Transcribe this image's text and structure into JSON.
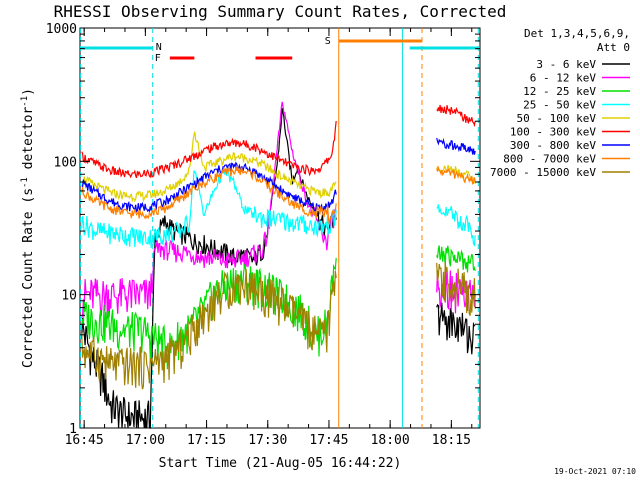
{
  "chart_data": {
    "type": "line",
    "title": "RHESSI Observing Summary Count Rates, Corrected",
    "xlabel": "Start Time (21-Aug-05 16:44:22)",
    "ylabel": "Corrected Count Rate (s⁻¹ detector⁻¹)",
    "ylabel_base": "Corrected Count Rate (s",
    "ylabel_sup1": "-1",
    "ylabel_mid": " detector",
    "ylabel_sup2": "-1",
    "ylabel_end": ")",
    "y_scale": "log",
    "xlim_min": [
      16.733,
      18.367
    ],
    "ylim": [
      1,
      1000
    ],
    "x_ticks": [
      {
        "min": 16.75,
        "label": "16:45"
      },
      {
        "min": 17.0,
        "label": "17:00"
      },
      {
        "min": 17.25,
        "label": "17:15"
      },
      {
        "min": 17.5,
        "label": "17:30"
      },
      {
        "min": 17.75,
        "label": "17:45"
      },
      {
        "min": 18.0,
        "label": "18:00"
      },
      {
        "min": 18.25,
        "label": "18:15"
      }
    ],
    "y_ticks": [
      {
        "v": 1,
        "label": "1"
      },
      {
        "v": 10,
        "label": "10"
      },
      {
        "v": 100,
        "label": "100"
      },
      {
        "v": 1000,
        "label": "1000"
      }
    ],
    "legend": {
      "header1": "Det 1,3,4,5,6,9,",
      "header2": "Att 0",
      "position": "right"
    },
    "timestamp": "19-Oct-2021 07:10",
    "markers": {
      "N": {
        "label": "N",
        "color": "#00e0e0"
      },
      "F": {
        "label": "F",
        "color": "#ff0000"
      },
      "S": {
        "label": "S",
        "color": "#ff8000"
      }
    },
    "bars": [
      {
        "code": "night",
        "color": "#00e0e0",
        "start": 16.735,
        "end": 17.03
      },
      {
        "code": "night",
        "color": "#00e0e0",
        "start": 18.08,
        "end": 18.36
      },
      {
        "code": "flare",
        "color": "#ff0000",
        "start": 17.1,
        "end": 17.2
      },
      {
        "code": "flare",
        "color": "#ff0000",
        "start": 17.45,
        "end": 17.6
      },
      {
        "code": "saa",
        "color": "#ff8000",
        "start": 17.79,
        "end": 18.13
      }
    ],
    "vlines": [
      {
        "x": 16.735,
        "color": "#00e0e0",
        "style": "dash"
      },
      {
        "x": 17.03,
        "color": "#00e0e0",
        "style": "dash"
      },
      {
        "x": 17.79,
        "color": "#ff8000",
        "style": "solid"
      },
      {
        "x": 18.05,
        "color": "#00e0e0",
        "style": "solid"
      },
      {
        "x": 18.13,
        "color": "#ff8000",
        "style": "dash"
      },
      {
        "x": 18.36,
        "color": "#00e0e0",
        "style": "dash"
      }
    ],
    "series": [
      {
        "name": "3 - 6 keV",
        "color": "#000000",
        "x1": [
          16.74,
          16.78,
          16.82,
          16.86,
          16.9,
          16.94,
          16.98,
          17.02,
          17.04,
          17.08,
          17.12,
          17.16,
          17.2,
          17.24,
          17.28,
          17.32,
          17.36,
          17.4,
          17.44,
          17.48,
          17.5,
          17.54,
          17.56,
          17.6,
          17.62,
          17.66,
          17.7,
          17.74,
          17.78
        ],
        "y1": [
          6,
          3.5,
          2.5,
          1.5,
          1.3,
          1.2,
          1.2,
          1.2,
          28,
          35,
          30,
          28,
          25,
          24,
          22,
          21,
          19,
          20,
          18,
          22,
          30,
          100,
          250,
          70,
          90,
          55,
          40,
          30,
          40
        ],
        "x2": [
          18.19,
          18.23,
          18.27,
          18.31,
          18.35
        ],
        "y2": [
          7,
          6.5,
          6,
          5.5,
          4.5
        ]
      },
      {
        "name": "6 - 12 keV",
        "color": "#ff00ff",
        "x1": [
          16.74,
          16.8,
          16.86,
          16.92,
          16.98,
          17.02,
          17.04,
          17.08,
          17.12,
          17.16,
          17.2,
          17.24,
          17.28,
          17.32,
          17.36,
          17.4,
          17.44,
          17.48,
          17.5,
          17.54,
          17.56,
          17.6,
          17.62,
          17.66,
          17.7,
          17.74,
          17.78
        ],
        "y1": [
          10,
          10,
          10,
          10,
          10,
          10,
          22,
          22,
          21,
          21,
          20,
          19,
          19,
          18,
          18,
          19,
          20,
          22,
          30,
          130,
          280,
          120,
          90,
          50,
          35,
          25,
          45
        ],
        "x2": [
          18.19,
          18.23,
          18.27,
          18.31,
          18.35
        ],
        "y2": [
          12,
          12,
          11,
          10,
          9
        ]
      },
      {
        "name": "12 - 25 keV",
        "color": "#00e000",
        "x1": [
          16.74,
          16.8,
          16.86,
          16.92,
          16.98,
          17.02,
          17.06,
          17.1,
          17.14,
          17.18,
          17.22,
          17.26,
          17.3,
          17.34,
          17.38,
          17.42,
          17.46,
          17.5,
          17.54,
          17.58,
          17.62,
          17.66,
          17.7,
          17.74,
          17.78
        ],
        "y1": [
          7,
          6.5,
          6,
          5.5,
          5.5,
          5,
          4.5,
          4,
          5,
          5.5,
          7,
          9,
          11,
          12,
          13,
          13,
          12,
          11,
          10,
          9,
          8,
          6.5,
          5,
          6,
          20
        ],
        "x2": [
          18.19,
          18.23,
          18.27,
          18.31,
          18.35
        ],
        "y2": [
          20,
          20,
          19,
          18,
          17
        ]
      },
      {
        "name": "25 - 50 keV",
        "color": "#00ffff",
        "x1": [
          16.74,
          16.8,
          16.86,
          16.92,
          16.98,
          17.02,
          17.06,
          17.1,
          17.14,
          17.18,
          17.2,
          17.24,
          17.28,
          17.32,
          17.36,
          17.4,
          17.44,
          17.48,
          17.52,
          17.56,
          17.6,
          17.64,
          17.68,
          17.72,
          17.76,
          17.78
        ],
        "y1": [
          35,
          30,
          29,
          28,
          27,
          27,
          28,
          29,
          30,
          35,
          90,
          40,
          60,
          85,
          70,
          45,
          40,
          38,
          37,
          36,
          35,
          34,
          33,
          32,
          35,
          40
        ],
        "x2": [
          18.19,
          18.23,
          18.27,
          18.31,
          18.35
        ],
        "y2": [
          45,
          42,
          38,
          33,
          28
        ]
      },
      {
        "name": "50 - 100 keV",
        "color": "#e0d000",
        "x1": [
          16.74,
          16.8,
          16.86,
          16.92,
          16.98,
          17.02,
          17.08,
          17.14,
          17.18,
          17.2,
          17.24,
          17.3,
          17.36,
          17.42,
          17.48,
          17.54,
          17.6,
          17.66,
          17.72,
          17.76,
          17.78
        ],
        "y1": [
          75,
          65,
          58,
          55,
          55,
          56,
          60,
          70,
          85,
          170,
          90,
          100,
          110,
          105,
          95,
          80,
          70,
          62,
          58,
          60,
          70
        ],
        "x2": [
          18.19,
          18.23,
          18.27,
          18.31,
          18.35
        ],
        "y2": [
          90,
          88,
          85,
          80,
          70
        ]
      },
      {
        "name": "100 - 300 keV",
        "color": "#ff0000",
        "x1": [
          16.74,
          16.8,
          16.86,
          16.92,
          16.98,
          17.02,
          17.08,
          17.14,
          17.2,
          17.26,
          17.32,
          17.38,
          17.44,
          17.5,
          17.56,
          17.62,
          17.68,
          17.72,
          17.76,
          17.78
        ],
        "y1": [
          110,
          95,
          85,
          80,
          80,
          82,
          88,
          98,
          110,
          125,
          135,
          138,
          130,
          115,
          100,
          90,
          85,
          90,
          110,
          190
        ],
        "x2": [
          18.19,
          18.23,
          18.27,
          18.31,
          18.35
        ],
        "y2": [
          250,
          245,
          230,
          210,
          190
        ]
      },
      {
        "name": "300 - 800 keV",
        "color": "#0000ff",
        "x1": [
          16.74,
          16.8,
          16.86,
          16.92,
          16.98,
          17.02,
          17.08,
          17.14,
          17.2,
          17.26,
          17.32,
          17.38,
          17.44,
          17.5,
          17.56,
          17.62,
          17.68,
          17.72,
          17.76,
          17.78
        ],
        "y1": [
          70,
          58,
          50,
          46,
          45,
          46,
          50,
          58,
          68,
          80,
          90,
          92,
          85,
          72,
          60,
          52,
          46,
          45,
          48,
          60
        ],
        "x2": [
          18.19,
          18.23,
          18.27,
          18.31,
          18.35
        ],
        "y2": [
          140,
          135,
          130,
          125,
          115
        ]
      },
      {
        "name": "800 - 7000 keV",
        "color": "#ff8000",
        "x1": [
          16.74,
          16.8,
          16.86,
          16.92,
          16.98,
          17.02,
          17.08,
          17.14,
          17.2,
          17.26,
          17.32,
          17.38,
          17.44,
          17.5,
          17.56,
          17.62,
          17.68,
          17.72,
          17.76,
          17.78
        ],
        "y1": [
          60,
          50,
          44,
          41,
          40,
          41,
          44,
          52,
          62,
          72,
          82,
          86,
          80,
          66,
          54,
          46,
          41,
          39,
          40,
          45
        ],
        "x2": [
          18.19,
          18.23,
          18.27,
          18.31,
          18.35
        ],
        "y2": [
          85,
          83,
          80,
          75,
          70
        ]
      },
      {
        "name": "7000 - 15000 keV",
        "color": "#a08000",
        "x1": [
          16.74,
          16.8,
          16.86,
          16.92,
          16.98,
          17.02,
          17.06,
          17.1,
          17.14,
          17.18,
          17.22,
          17.26,
          17.3,
          17.34,
          17.38,
          17.42,
          17.46,
          17.5,
          17.54,
          17.58,
          17.62,
          17.66,
          17.7,
          17.74,
          17.78
        ],
        "y1": [
          4,
          3.5,
          3,
          3,
          3,
          3,
          3.2,
          3.5,
          4,
          5,
          6.5,
          8,
          10,
          11.5,
          12,
          12,
          11,
          10,
          9,
          8,
          7,
          6,
          5,
          5,
          16
        ],
        "x2": [
          18.19,
          18.23,
          18.27,
          18.31,
          18.35
        ],
        "y2": [
          13,
          13,
          12,
          11,
          10
        ]
      }
    ]
  }
}
